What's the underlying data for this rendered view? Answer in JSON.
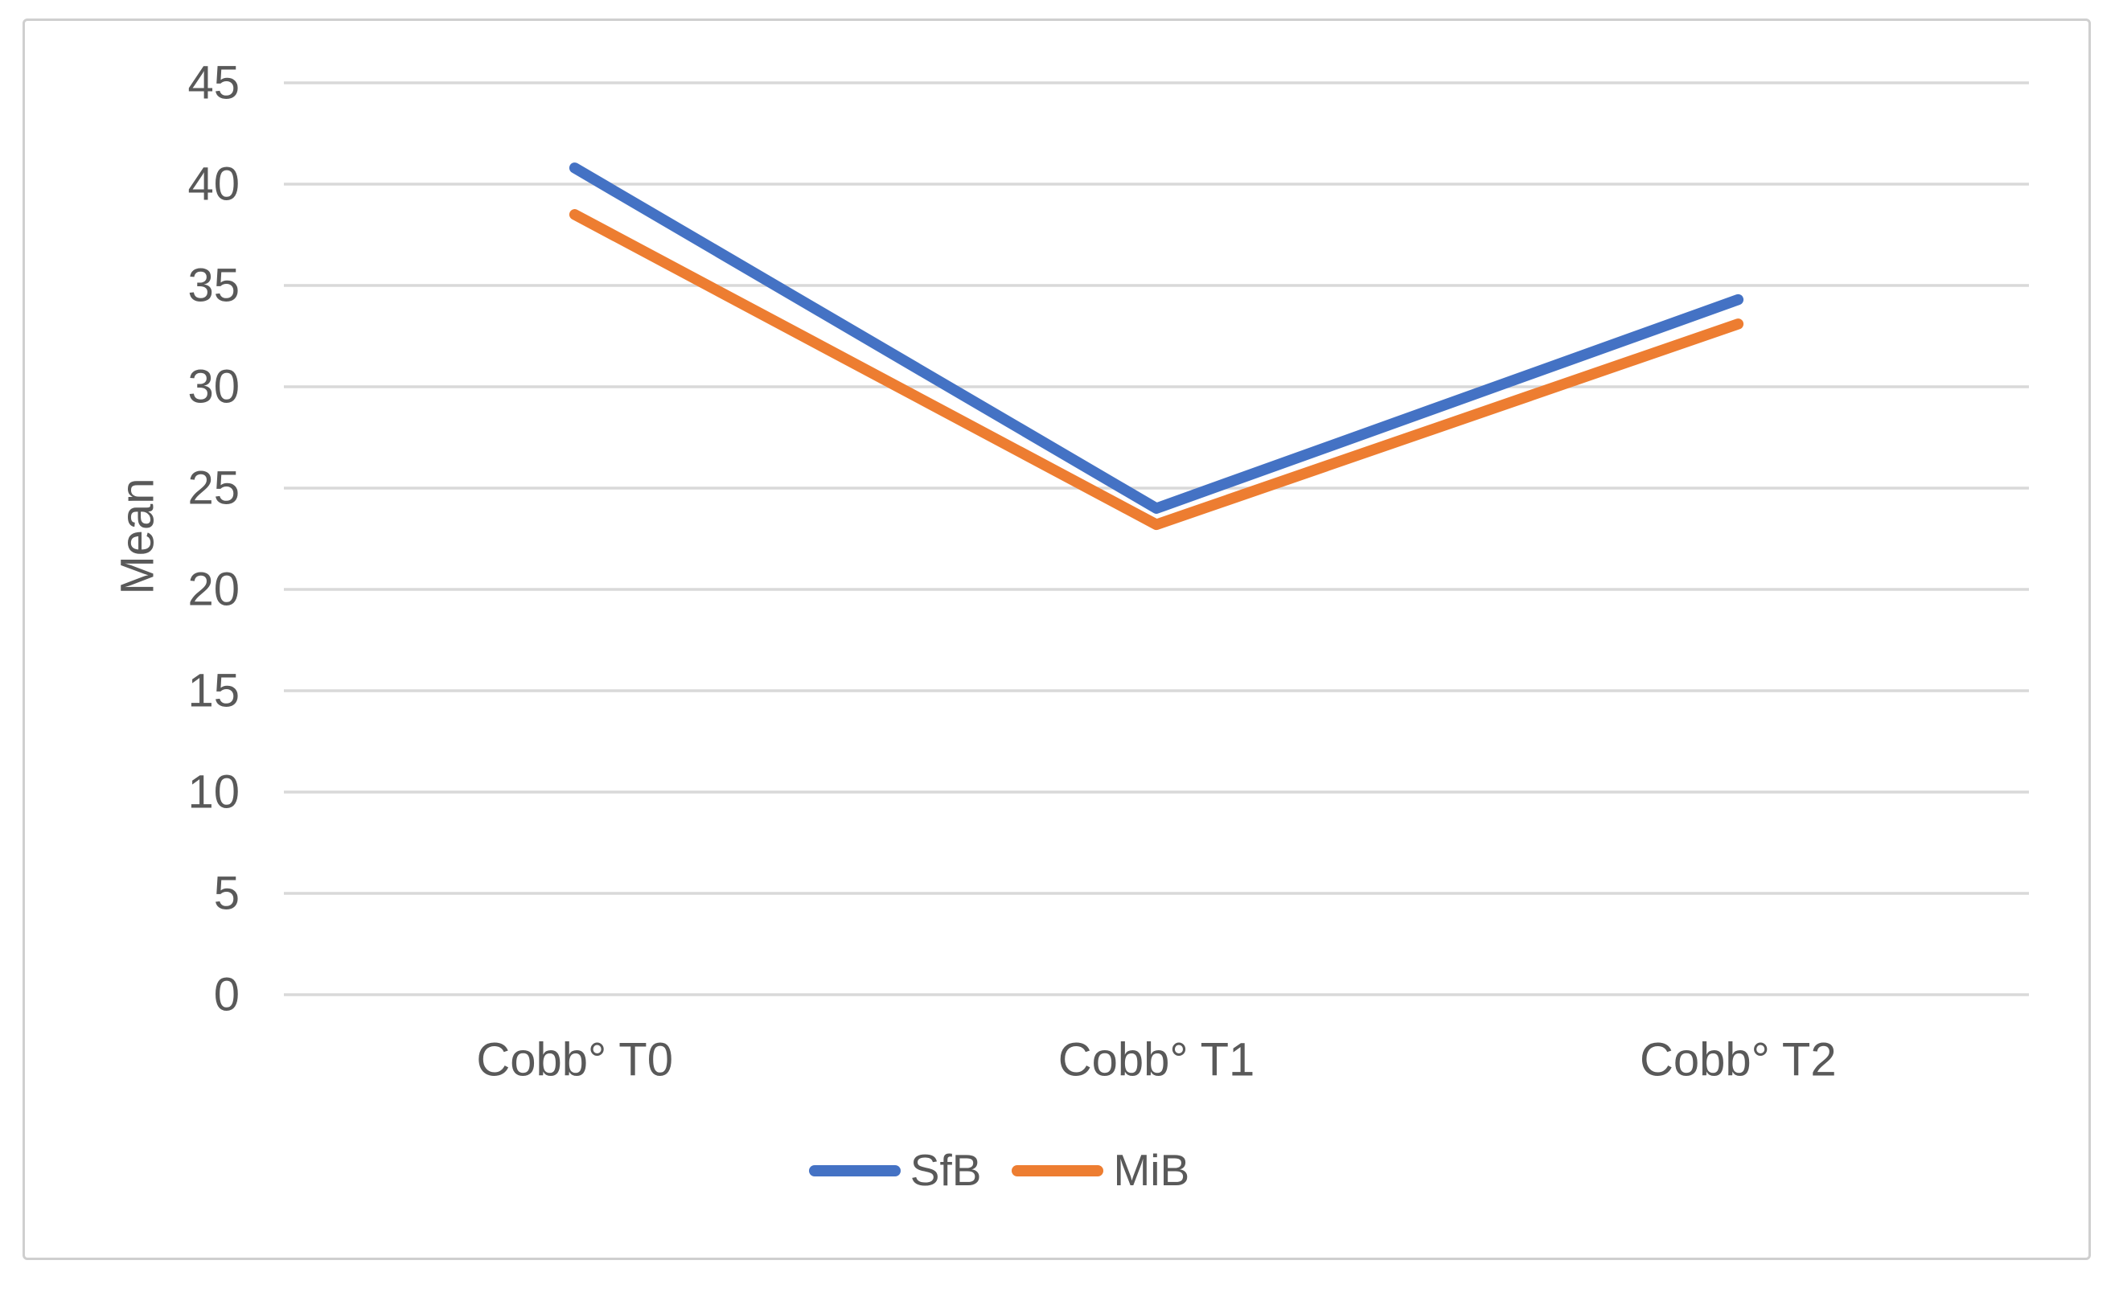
{
  "chart_data": {
    "type": "line",
    "title": "",
    "xlabel": "",
    "ylabel": "Mean",
    "categories": [
      "Cobb° T0",
      "Cobb° T1",
      "Cobb° T2"
    ],
    "series": [
      {
        "name": "SfB",
        "color": "#4472C4",
        "values": [
          40.8,
          24.0,
          34.3
        ]
      },
      {
        "name": "MiB",
        "color": "#ED7D31",
        "values": [
          38.5,
          23.2,
          33.1
        ]
      }
    ],
    "ylim": [
      0,
      45
    ],
    "ytick_step": 5,
    "ytick_labels": [
      "0",
      "5",
      "10",
      "15",
      "20",
      "25",
      "30",
      "35",
      "40",
      "45"
    ],
    "grid": "horizontal",
    "legend_position": "bottom-center",
    "gridline_color": "#D9D9D9",
    "axis_text_color": "#595959",
    "frame_border_color": "#CFCFCF"
  }
}
